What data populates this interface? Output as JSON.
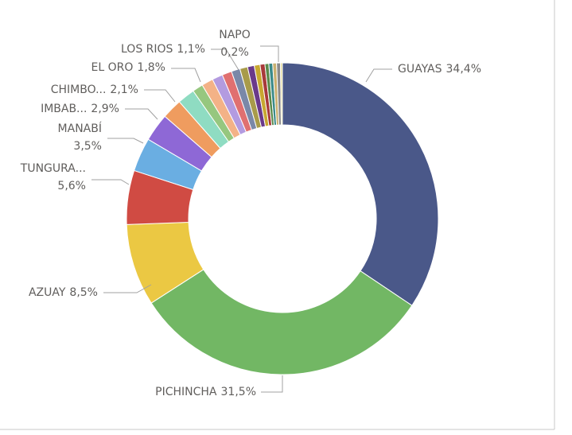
{
  "chart_data": {
    "type": "donut",
    "categories": [
      "GUAYAS",
      "PICHINCHA",
      "AZUAY",
      "TUNGURA...",
      "MANABÍ",
      "IMBAB...",
      "CHIMBO...",
      "EL ORO",
      "LOS RIOS",
      null,
      null,
      null,
      null,
      null,
      null,
      null,
      null,
      null,
      null,
      null,
      null,
      "NAPO"
    ],
    "values": [
      34.4,
      31.5,
      8.5,
      5.6,
      3.5,
      2.9,
      2.1,
      1.8,
      1.1,
      1.2,
      1.1,
      1.0,
      0.9,
      0.8,
      0.7,
      0.6,
      0.5,
      0.4,
      0.4,
      0.4,
      0.4,
      0.2
    ],
    "value_labels": [
      "34,4%",
      "31,5%",
      "8,5%",
      "5,6%",
      "3,5%",
      "2,9%",
      "2,1%",
      "1,8%",
      "1,1%",
      null,
      null,
      null,
      null,
      null,
      null,
      null,
      null,
      null,
      null,
      null,
      null,
      "0,2%"
    ],
    "colors": [
      "#4a5889",
      "#72b764",
      "#ebc843",
      "#d04b43",
      "#6aaee2",
      "#8e68d6",
      "#ef9c5f",
      "#8fdcc2",
      "#96c77f",
      "#f3b287",
      "#b39be0",
      "#e07070",
      "#7a88a8",
      "#a89b4a",
      "#6a3a8a",
      "#c8a830",
      "#a83a3a",
      "#5a8a4a",
      "#3a8a8a",
      "#c8b070",
      "#8a8a8a",
      "#e6dc9a"
    ]
  }
}
